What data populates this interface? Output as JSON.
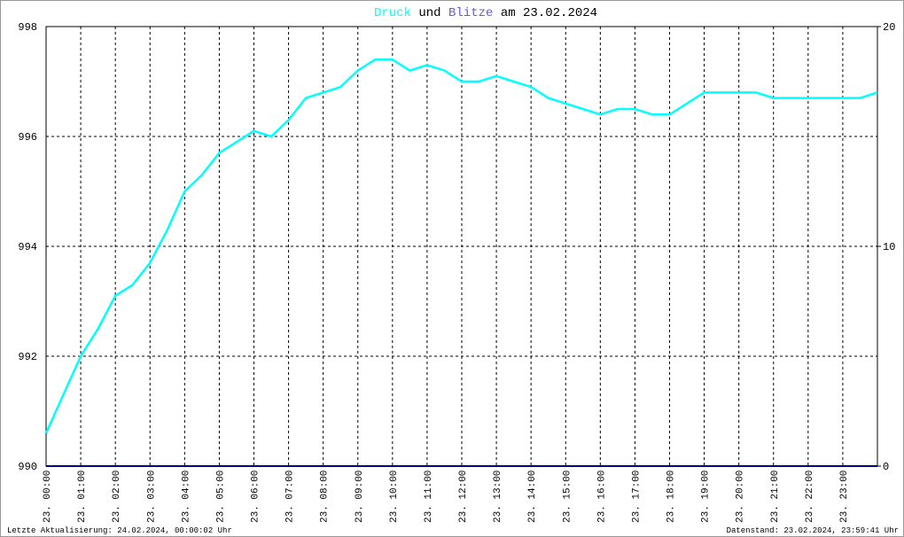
{
  "chart_data": {
    "type": "line",
    "title_connector": "und",
    "title_date": "am 23.02.2024",
    "footer_left": "Letzte Aktualisierung: 24.02.2024, 00:00:02 Uhr",
    "footer_right": "Datenstand: 23.02.2024, 23:59:41 Uhr",
    "x": [
      0,
      0.5,
      1,
      1.5,
      2,
      2.5,
      3,
      3.5,
      4,
      4.5,
      5,
      5.5,
      6,
      6.5,
      7,
      7.5,
      8,
      8.5,
      9,
      9.5,
      10,
      10.5,
      11,
      11.5,
      12,
      12.5,
      13,
      13.5,
      14,
      14.5,
      15,
      15.5,
      16,
      16.5,
      17,
      17.5,
      18,
      18.5,
      19,
      19.5,
      20,
      20.5,
      21,
      21.5,
      22,
      22.5,
      23,
      23.5,
      24
    ],
    "xlim": [
      0,
      24
    ],
    "xticks": [
      {
        "value": 0,
        "label": "23. 00:00"
      },
      {
        "value": 1,
        "label": "23. 01:00"
      },
      {
        "value": 2,
        "label": "23. 02:00"
      },
      {
        "value": 3,
        "label": "23. 03:00"
      },
      {
        "value": 4,
        "label": "23. 04:00"
      },
      {
        "value": 5,
        "label": "23. 05:00"
      },
      {
        "value": 6,
        "label": "23. 06:00"
      },
      {
        "value": 7,
        "label": "23. 07:00"
      },
      {
        "value": 8,
        "label": "23. 08:00"
      },
      {
        "value": 9,
        "label": "23. 09:00"
      },
      {
        "value": 10,
        "label": "23. 10:00"
      },
      {
        "value": 11,
        "label": "23. 11:00"
      },
      {
        "value": 12,
        "label": "23. 12:00"
      },
      {
        "value": 13,
        "label": "23. 13:00"
      },
      {
        "value": 14,
        "label": "23. 14:00"
      },
      {
        "value": 15,
        "label": "23. 15:00"
      },
      {
        "value": 16,
        "label": "23. 16:00"
      },
      {
        "value": 17,
        "label": "23. 17:00"
      },
      {
        "value": 18,
        "label": "23. 18:00"
      },
      {
        "value": 19,
        "label": "23. 19:00"
      },
      {
        "value": 20,
        "label": "23. 20:00"
      },
      {
        "value": 21,
        "label": "23. 21:00"
      },
      {
        "value": 22,
        "label": "23. 22:00"
      },
      {
        "value": 23,
        "label": "23. 23:00"
      }
    ],
    "ylim": [
      990,
      998
    ],
    "yticks": [
      990,
      992,
      994,
      996,
      998
    ],
    "y2lim": [
      0,
      20
    ],
    "y2ticks": [
      0,
      10,
      20
    ],
    "grid": true,
    "series": [
      {
        "name": "Druck",
        "color": "#00ffff",
        "values": [
          990.6,
          991.3,
          992.0,
          992.5,
          993.1,
          993.3,
          993.7,
          994.3,
          995.0,
          995.3,
          995.7,
          995.9,
          996.1,
          996.0,
          996.3,
          996.7,
          996.8,
          996.9,
          997.2,
          997.4,
          997.4,
          997.2,
          997.3,
          997.2,
          997.0,
          997.0,
          997.1,
          997.0,
          996.9,
          996.7,
          996.6,
          996.5,
          996.4,
          996.5,
          996.5,
          996.4,
          996.4,
          996.6,
          996.8,
          996.8,
          996.8,
          996.8,
          996.7,
          996.7,
          996.7,
          996.7,
          996.7,
          996.7,
          996.8
        ]
      },
      {
        "name": "Blitze",
        "color": "#6a5acd",
        "line_color": "#000080",
        "axis": "y2",
        "values": [
          0,
          0,
          0,
          0,
          0,
          0,
          0,
          0,
          0,
          0,
          0,
          0,
          0,
          0,
          0,
          0,
          0,
          0,
          0,
          0,
          0,
          0,
          0,
          0,
          0,
          0,
          0,
          0,
          0,
          0,
          0,
          0,
          0,
          0,
          0,
          0,
          0,
          0,
          0,
          0,
          0,
          0,
          0,
          0,
          0,
          0,
          0,
          0,
          0
        ]
      }
    ]
  }
}
